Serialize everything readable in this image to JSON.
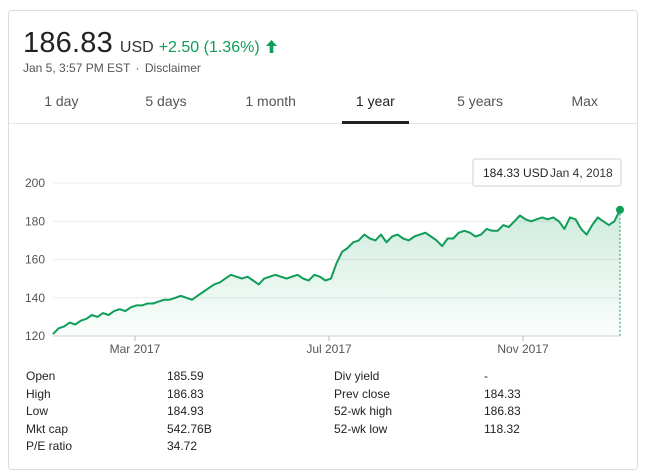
{
  "quote": {
    "price": "186.83",
    "currency": "USD",
    "change": "+2.50 (1.36%)",
    "trend_color": "#0f9d58",
    "timestamp": "Jan 5, 3:57 PM EST",
    "separator": "·",
    "disclaimer": "Disclaimer",
    "arrow_icon": "arrow-up-icon"
  },
  "tabs": [
    {
      "label": "1 day"
    },
    {
      "label": "5 days"
    },
    {
      "label": "1 month"
    },
    {
      "label": "1 year",
      "active": true
    },
    {
      "label": "5 years"
    },
    {
      "label": "Max"
    }
  ],
  "chart_data": {
    "type": "area",
    "y_ticks": [
      "200",
      "180",
      "160",
      "140",
      "120"
    ],
    "ylim": [
      120,
      200
    ],
    "x_ticks": [
      "Mar 2017",
      "Jul 2017",
      "Nov 2017"
    ],
    "grid": true,
    "line_color": "#0f9d58",
    "tooltip": {
      "value": "184.33 USD",
      "date": "Jan 4, 2018"
    },
    "series": [
      {
        "values": [
          121,
          124,
          125,
          127,
          126,
          128,
          129,
          131,
          130,
          132,
          131,
          133,
          134,
          133,
          135,
          136,
          136,
          137,
          137,
          138,
          139,
          139,
          140,
          141,
          140,
          139,
          141,
          143,
          145,
          147,
          148,
          150,
          152,
          151,
          150,
          151,
          149,
          147,
          150,
          151,
          152,
          151,
          150,
          151,
          152,
          150,
          149,
          152,
          151,
          149,
          150,
          158,
          164,
          166,
          169,
          170,
          173,
          171,
          170,
          173,
          169,
          172,
          173,
          171,
          170,
          172,
          173,
          174,
          172,
          170,
          167,
          171,
          171,
          174,
          175,
          174,
          172,
          173,
          176,
          175,
          175,
          178,
          177,
          180,
          183,
          181,
          180,
          181,
          182,
          181,
          182,
          180,
          176,
          182,
          181,
          176,
          173,
          178,
          182,
          180,
          178,
          180,
          186
        ]
      }
    ]
  },
  "stats": {
    "left": [
      {
        "label": "Open",
        "value": "185.59"
      },
      {
        "label": "High",
        "value": "186.83"
      },
      {
        "label": "Low",
        "value": "184.93"
      },
      {
        "label": "Mkt cap",
        "value": "542.76B"
      },
      {
        "label": "P/E ratio",
        "value": "34.72"
      }
    ],
    "right": [
      {
        "label": "Div yield",
        "value": "-"
      },
      {
        "label": "Prev close",
        "value": "184.33"
      },
      {
        "label": "52-wk high",
        "value": "186.83"
      },
      {
        "label": "52-wk low",
        "value": "118.32"
      }
    ]
  }
}
